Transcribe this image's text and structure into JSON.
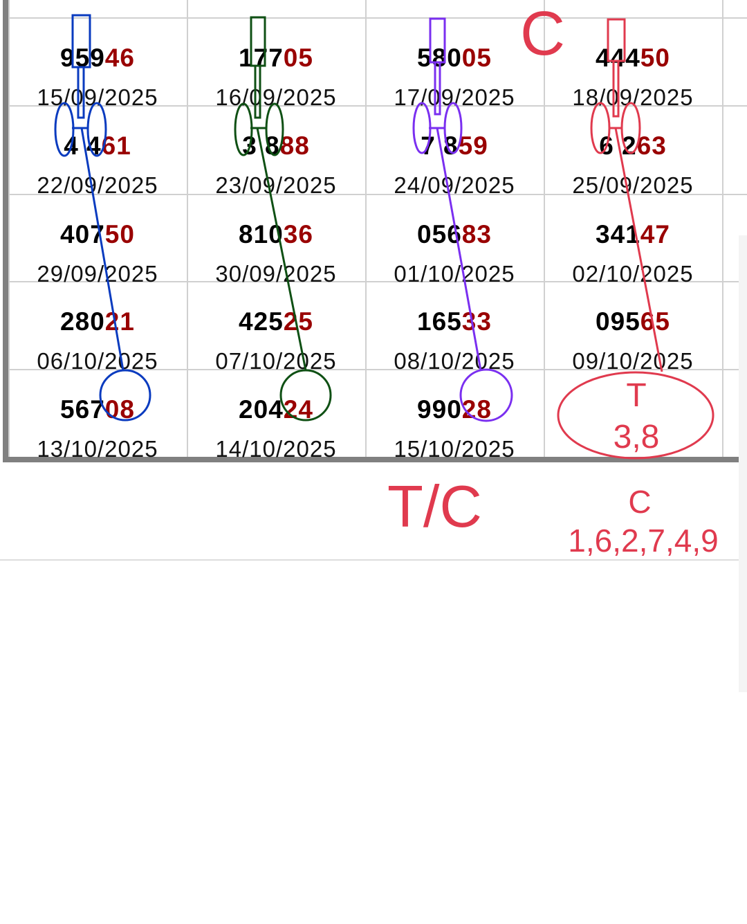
{
  "table": {
    "rows": [
      [
        {
          "num_head": "959",
          "num_tail": "46",
          "date": "15/09/2025"
        },
        {
          "num_head": "177",
          "num_tail": "05",
          "date": "16/09/2025"
        },
        {
          "num_head": "580",
          "num_tail": "05",
          "date": "17/09/2025"
        },
        {
          "num_head": "444",
          "num_tail": "50",
          "date": "18/09/2025"
        }
      ],
      [
        {
          "num_head": "4 4",
          "num_tail": "61",
          "date": "22/09/2025"
        },
        {
          "num_head": "3 8",
          "num_tail": "88",
          "date": "23/09/2025"
        },
        {
          "num_head": "7 8",
          "num_tail": "59",
          "date": "24/09/2025"
        },
        {
          "num_head": "6 2",
          "num_tail": "63",
          "date": "25/09/2025"
        }
      ],
      [
        {
          "num_head": "407",
          "num_tail": "50",
          "date": "29/09/2025"
        },
        {
          "num_head": "810",
          "num_tail": "36",
          "date": "30/09/2025"
        },
        {
          "num_head": "056",
          "num_tail": "83",
          "date": "01/10/2025"
        },
        {
          "num_head": "341",
          "num_tail": "47",
          "date": "02/10/2025"
        }
      ],
      [
        {
          "num_head": "280",
          "num_tail": "21",
          "date": "06/10/2025"
        },
        {
          "num_head": "425",
          "num_tail": "25",
          "date": "07/10/2025"
        },
        {
          "num_head": "165",
          "num_tail": "33",
          "date": "08/10/2025"
        },
        {
          "num_head": "095",
          "num_tail": "65",
          "date": "09/10/2025"
        }
      ],
      [
        {
          "num_head": "567",
          "num_tail": "08",
          "date": "13/10/2025"
        },
        {
          "num_head": "204",
          "num_tail": "24",
          "date": "14/10/2025"
        },
        {
          "num_head": "990",
          "num_tail": "28",
          "date": "15/10/2025"
        }
      ]
    ]
  },
  "annotations": {
    "big_c": "C",
    "tc": "T/C",
    "t_label": "T",
    "t_values": "3,8",
    "c_label": "C",
    "c_values": "1,6,2,7,4,9"
  },
  "colors": {
    "blue": "#0a3bbf",
    "green": "#0f5014",
    "purple": "#7a2ff0",
    "red": "#e03a4e",
    "tail": "#990000"
  }
}
